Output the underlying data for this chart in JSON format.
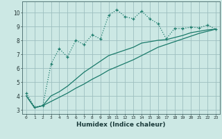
{
  "xlabel": "Humidex (Indice chaleur)",
  "x": [
    0,
    1,
    2,
    3,
    4,
    5,
    6,
    7,
    8,
    9,
    10,
    11,
    12,
    13,
    14,
    15,
    16,
    17,
    18,
    19,
    20,
    21,
    22,
    23
  ],
  "line1": [
    4.2,
    3.2,
    3.3,
    6.3,
    7.4,
    6.8,
    8.0,
    7.7,
    8.4,
    8.1,
    9.8,
    10.2,
    9.7,
    9.55,
    10.1,
    9.55,
    9.2,
    8.1,
    8.85,
    8.85,
    8.95,
    8.9,
    9.1,
    8.8
  ],
  "line2": [
    4.0,
    3.15,
    3.3,
    4.0,
    4.3,
    4.7,
    5.2,
    5.7,
    6.1,
    6.5,
    6.9,
    7.1,
    7.3,
    7.5,
    7.8,
    7.9,
    8.0,
    8.05,
    8.2,
    8.35,
    8.55,
    8.65,
    8.75,
    8.8
  ],
  "line3": [
    4.0,
    3.15,
    3.3,
    3.6,
    3.9,
    4.2,
    4.55,
    4.85,
    5.2,
    5.5,
    5.85,
    6.1,
    6.35,
    6.6,
    6.9,
    7.2,
    7.5,
    7.7,
    7.9,
    8.1,
    8.3,
    8.5,
    8.65,
    8.8
  ],
  "color": "#1a7a6a",
  "bg_color": "#cce8e4",
  "grid_color": "#9dbfbf",
  "ylim": [
    2.7,
    10.8
  ],
  "yticks": [
    3,
    4,
    5,
    6,
    7,
    8,
    9,
    10
  ]
}
